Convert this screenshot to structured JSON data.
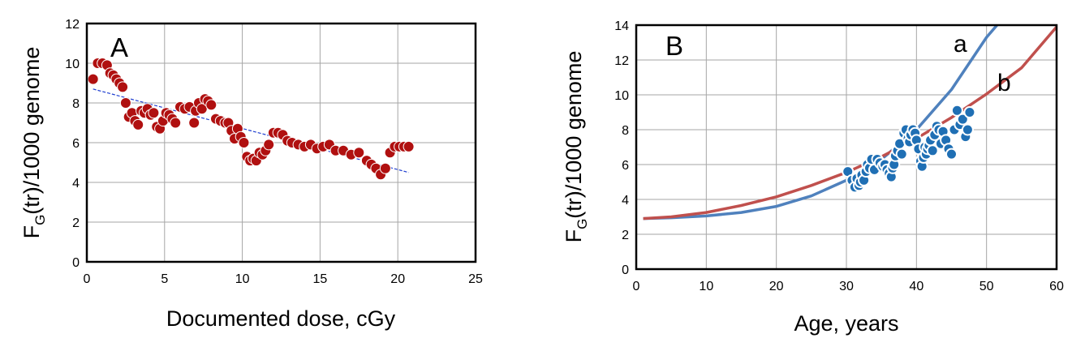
{
  "chart_data": [
    {
      "type": "scatter",
      "panel_label": "A",
      "xlabel": "Documented dose, cGy",
      "ylabel": {
        "main": "F",
        "sub": "G",
        "rest": "(tr)/1000 genome"
      },
      "xlim": [
        0,
        25
      ],
      "ylim": [
        0,
        12
      ],
      "xticks": [
        0,
        5,
        10,
        15,
        20,
        25
      ],
      "yticks": [
        0,
        2,
        4,
        6,
        8,
        10,
        12
      ],
      "grid": true,
      "marker_color": "#B01010",
      "trendline_color": "#1F3FD0",
      "trendline": {
        "x": [
          0.4,
          20.7
        ],
        "y": [
          8.7,
          4.5
        ]
      },
      "points": {
        "x": [
          0.4,
          0.7,
          1.0,
          1.3,
          1.5,
          1.7,
          1.9,
          2.1,
          2.3,
          2.5,
          2.7,
          2.9,
          3.1,
          3.3,
          3.5,
          3.7,
          3.9,
          4.1,
          4.3,
          4.5,
          4.7,
          4.9,
          5.1,
          5.3,
          5.5,
          5.7,
          6.0,
          6.3,
          6.6,
          6.9,
          7.0,
          7.2,
          7.4,
          7.6,
          7.8,
          8.0,
          8.3,
          8.6,
          8.9,
          9.1,
          9.3,
          9.5,
          9.7,
          9.9,
          10.1,
          10.3,
          10.5,
          10.7,
          10.9,
          11.1,
          11.3,
          11.5,
          11.7,
          12.0,
          12.3,
          12.6,
          12.9,
          13.2,
          13.6,
          14.0,
          14.4,
          14.8,
          15.2,
          15.6,
          16.0,
          16.5,
          17.0,
          17.5,
          18.0,
          18.3,
          18.6,
          18.9,
          19.2,
          19.5,
          19.8,
          20.1,
          20.4,
          20.7
        ],
        "y": [
          9.2,
          10.0,
          10.0,
          9.9,
          9.5,
          9.4,
          9.2,
          9.0,
          8.8,
          8.0,
          7.3,
          7.5,
          7.1,
          6.9,
          7.6,
          7.5,
          7.7,
          7.4,
          7.5,
          6.8,
          6.7,
          7.1,
          7.5,
          7.4,
          7.2,
          7.0,
          7.8,
          7.7,
          7.8,
          7.0,
          7.6,
          8.0,
          7.7,
          8.2,
          8.1,
          7.9,
          7.2,
          7.1,
          7.0,
          7.0,
          6.6,
          6.2,
          6.7,
          6.3,
          6.0,
          5.3,
          5.1,
          5.2,
          5.1,
          5.5,
          5.4,
          5.6,
          5.9,
          6.5,
          6.5,
          6.4,
          6.1,
          6.0,
          5.9,
          5.8,
          5.9,
          5.7,
          5.8,
          5.9,
          5.6,
          5.6,
          5.4,
          5.5,
          5.1,
          4.9,
          4.7,
          4.4,
          4.7,
          5.5,
          5.8,
          5.8,
          5.8,
          5.8
        ]
      }
    },
    {
      "type": "scatter",
      "panel_label": "B",
      "xlabel": "Age, years",
      "ylabel": {
        "main": "F",
        "sub": "G",
        "rest": "(tr)/1000 genome"
      },
      "xlim": [
        0,
        60
      ],
      "ylim": [
        0,
        14
      ],
      "xticks": [
        0,
        10,
        20,
        30,
        40,
        50,
        60
      ],
      "yticks": [
        0,
        2,
        4,
        6,
        8,
        10,
        12,
        14
      ],
      "grid": true,
      "marker_color": "#1F6FB4",
      "curves": [
        {
          "label": "a",
          "color": "#4F81BD",
          "x": [
            1,
            5,
            10,
            15,
            20,
            25,
            30,
            35,
            40,
            45,
            50,
            51.5
          ],
          "y": [
            2.9,
            2.95,
            3.05,
            3.25,
            3.6,
            4.2,
            5.1,
            6.3,
            8.0,
            10.3,
            13.3,
            14.0
          ]
        },
        {
          "label": "b",
          "color": "#C0504D",
          "x": [
            1,
            5,
            10,
            15,
            20,
            25,
            30,
            35,
            40,
            45,
            50,
            55,
            60
          ],
          "y": [
            2.9,
            3.0,
            3.25,
            3.65,
            4.15,
            4.8,
            5.55,
            6.45,
            7.5,
            8.7,
            10.05,
            11.55,
            13.9
          ]
        }
      ],
      "points": {
        "x": [
          30.2,
          30.8,
          31.2,
          31.5,
          31.8,
          32.0,
          32.2,
          32.5,
          32.8,
          33.0,
          33.3,
          33.6,
          34.0,
          34.4,
          34.8,
          35.2,
          35.5,
          35.8,
          36.1,
          36.4,
          36.6,
          36.8,
          37.0,
          37.3,
          37.6,
          37.9,
          38.2,
          38.5,
          38.8,
          39.0,
          39.2,
          39.5,
          39.8,
          40.0,
          40.3,
          40.6,
          40.8,
          41.0,
          41.2,
          41.4,
          41.6,
          41.8,
          42.0,
          42.3,
          42.6,
          42.9,
          43.2,
          43.5,
          43.8,
          44.2,
          44.6,
          45.0,
          45.4,
          45.8,
          46.2,
          46.6,
          47.0,
          47.3,
          47.6
        ],
        "y": [
          5.6,
          5.1,
          4.7,
          5.2,
          4.8,
          5.0,
          5.4,
          5.1,
          5.6,
          6.0,
          5.8,
          6.3,
          5.7,
          6.3,
          6.1,
          5.9,
          6.0,
          5.7,
          5.5,
          5.3,
          5.8,
          6.0,
          6.5,
          6.8,
          7.2,
          6.6,
          7.8,
          8.0,
          7.5,
          7.3,
          7.7,
          8.0,
          7.8,
          7.4,
          6.9,
          6.2,
          5.9,
          6.4,
          7.0,
          6.6,
          6.9,
          7.1,
          7.4,
          6.8,
          7.7,
          8.2,
          8.0,
          7.2,
          7.9,
          7.4,
          6.9,
          6.6,
          8.0,
          9.1,
          8.3,
          8.6,
          7.6,
          8.0,
          9.0
        ]
      }
    }
  ]
}
